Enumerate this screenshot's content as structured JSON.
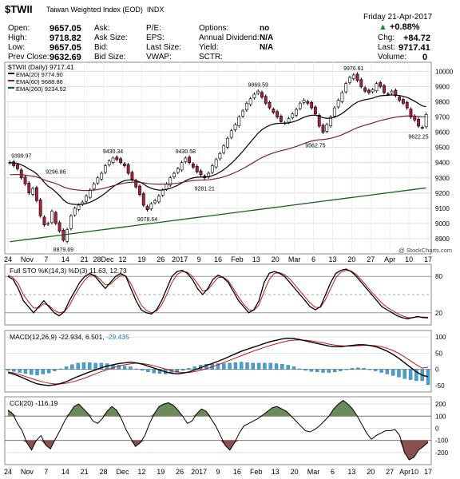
{
  "header": {
    "symbol": "$TWII",
    "name": "Taiwan Weighted Index (EOD)",
    "exchange": "INDX",
    "date": "Friday  21-Apr-2017",
    "watermark": "@ StockCharts.com",
    "open_label": "Open:",
    "open": "9657.05",
    "high_label": "High:",
    "high": "9718.82",
    "low_label": "Low:",
    "low": "9657.05",
    "prev_label": "Prev Close:",
    "prev": "9632.69",
    "ask_label": "Ask:",
    "asksize_label": "Ask Size:",
    "bid_label": "Bid:",
    "bidsize_label": "Bid Size:",
    "pe_label": "P/E:",
    "eps_label": "EPS:",
    "lastsize_label": "Last Size:",
    "vwap_label": "VWAP:",
    "options_label": "Options:",
    "options": "no",
    "div_label": "Annual Dividend:",
    "div": "N/A",
    "yield_label": "Yield:",
    "yield": "N/A",
    "sctr_label": "SCTR:",
    "pct_change": "+0.88%",
    "chg_label": "Chg:",
    "chg": "+84.72",
    "last_label": "Last:",
    "last": "9717.41",
    "volume_label": "Volume:",
    "volume": "0"
  },
  "legend": {
    "main": "$TWII (Daily) 9717.41",
    "ema20": "EMA(20) 9774.90",
    "ema60": "EMA(60) 9688.86",
    "ema260": "EMA(260) 9234.52",
    "sto": "Full STO %K(14,3) %D(3) 11.63, 12.73",
    "macd_black": "MACD(12,26,9)",
    "macd_red": "-22.934, 6.501,",
    "macd_blue": "-29.435",
    "cci": "CCI(20) -116.19"
  },
  "colors": {
    "up": "#ffffff",
    "down": "#b0203a",
    "ema20": "#000000",
    "ema60": "#7a1f3a",
    "ema260": "#1a5e1a",
    "sto_d": "#c01818",
    "hist": "#4aa0d0",
    "cci_fill": "#6b8a5a",
    "cci_neg": "#8a5050"
  },
  "chart_data": {
    "type": "candlestick",
    "title": "$TWII Taiwan Weighted Index (EOD) INDX",
    "price_ylim": [
      8800,
      10060
    ],
    "price_ticks": [
      "10000",
      "9900",
      "9800",
      "9700",
      "9600",
      "9500",
      "9400",
      "9300",
      "9200",
      "9100",
      "9000",
      "8900"
    ],
    "x_labels": [
      "24",
      "Nov",
      "7",
      "14",
      "21",
      "28Dec",
      "12",
      "19",
      "26",
      "2017",
      "9",
      "16",
      "Feb",
      "13",
      "20",
      "Mar",
      "6",
      "13",
      "20",
      "27",
      "Apr",
      "10",
      "17"
    ],
    "bottom_x_labels": [
      "24",
      "Nov",
      "7",
      "14",
      "21",
      "28",
      "Dec",
      "12",
      "19",
      "26",
      "2017",
      "9",
      "16",
      "Feb",
      "13",
      "20",
      "Mar",
      "6",
      "13",
      "20",
      "27",
      "Apr10",
      "17"
    ],
    "annotations": [
      "9399.97",
      "9296.86",
      "8879.69",
      "9430.34",
      "9078.64",
      "9430.58",
      "9281.21",
      "9869.59",
      "9562.75",
      "9976.61",
      "9622.25"
    ],
    "closes": [
      9400,
      9380,
      9360,
      9300,
      9260,
      9200,
      9230,
      9150,
      9050,
      8990,
      9000,
      9080,
      9000,
      8950,
      8890,
      8960,
      9050,
      9100,
      9120,
      9140,
      9180,
      9220,
      9260,
      9300,
      9330,
      9380,
      9410,
      9430,
      9420,
      9400,
      9380,
      9330,
      9290,
      9240,
      9190,
      9120,
      9090,
      9130,
      9150,
      9180,
      9220,
      9260,
      9300,
      9330,
      9360,
      9400,
      9430,
      9400,
      9370,
      9340,
      9320,
      9300,
      9330,
      9380,
      9420,
      9460,
      9510,
      9560,
      9610,
      9650,
      9700,
      9740,
      9790,
      9820,
      9850,
      9870,
      9830,
      9790,
      9760,
      9730,
      9700,
      9670,
      9660,
      9690,
      9720,
      9750,
      9790,
      9810,
      9790,
      9760,
      9720,
      9640,
      9600,
      9650,
      9700,
      9760,
      9810,
      9860,
      9920,
      9960,
      9976,
      9940,
      9900,
      9870,
      9860,
      9880,
      9920,
      9900,
      9860,
      9850,
      9870,
      9840,
      9810,
      9790,
      9760,
      9700,
      9680,
      9640,
      9630,
      9717
    ],
    "sto_k": [
      80,
      75,
      60,
      40,
      30,
      20,
      30,
      40,
      30,
      20,
      15,
      22,
      40,
      55,
      70,
      80,
      85,
      80,
      70,
      60,
      70,
      80,
      85,
      80,
      60,
      40,
      25,
      20,
      18,
      25,
      40,
      60,
      80,
      88,
      90,
      85,
      75,
      60,
      50,
      60,
      75,
      82,
      78,
      70,
      55,
      40,
      30,
      20,
      25,
      40,
      70,
      85,
      88,
      85,
      80,
      70,
      60,
      50,
      40,
      30,
      25,
      30,
      50,
      70,
      85,
      90,
      92,
      88,
      80,
      70,
      60,
      50,
      40,
      30,
      25,
      20,
      15,
      12,
      10,
      12,
      14,
      12,
      11.63
    ],
    "sto_d": [
      82,
      78,
      68,
      50,
      38,
      28,
      28,
      35,
      32,
      24,
      20,
      22,
      32,
      48,
      62,
      74,
      82,
      82,
      75,
      66,
      67,
      75,
      82,
      81,
      68,
      50,
      33,
      24,
      20,
      23,
      33,
      50,
      70,
      83,
      88,
      87,
      80,
      68,
      56,
      58,
      68,
      78,
      79,
      73,
      60,
      46,
      34,
      25,
      24,
      33,
      55,
      75,
      85,
      86,
      83,
      76,
      66,
      56,
      46,
      36,
      29,
      29,
      42,
      60,
      78,
      87,
      90,
      89,
      83,
      74,
      64,
      54,
      45,
      36,
      29,
      24,
      19,
      15,
      12,
      12,
      13,
      13,
      12.73
    ],
    "macd": [
      -10,
      -15,
      -22,
      -30,
      -38,
      -45,
      -48,
      -50,
      -48,
      -44,
      -38,
      -30,
      -22,
      -15,
      -8,
      -2,
      5,
      10,
      14,
      18,
      20,
      22,
      20,
      16,
      10,
      4,
      -2,
      -8,
      -12,
      -14,
      -12,
      -8,
      -2,
      5,
      12,
      18,
      25,
      32,
      40,
      48,
      56,
      62,
      68,
      74,
      80,
      86,
      90,
      94,
      96,
      95,
      92,
      88,
      84,
      80,
      76,
      72,
      70,
      70,
      72,
      74,
      76,
      76,
      74,
      70,
      64,
      56,
      46,
      34,
      20,
      6,
      -8,
      -18,
      -22.934
    ],
    "macd_signal": [
      -8,
      -11,
      -16,
      -22,
      -28,
      -34,
      -39,
      -43,
      -45,
      -45,
      -43,
      -39,
      -34,
      -28,
      -21,
      -14,
      -7,
      -1,
      5,
      10,
      14,
      17,
      19,
      18,
      15,
      11,
      6,
      1,
      -4,
      -8,
      -10,
      -10,
      -7,
      -3,
      2,
      8,
      14,
      21,
      28,
      35,
      42,
      49,
      56,
      62,
      68,
      74,
      79,
      84,
      88,
      90,
      91,
      90,
      88,
      85,
      82,
      78,
      75,
      73,
      72,
      72,
      73,
      74,
      74,
      73,
      70,
      65,
      58,
      49,
      38,
      26,
      14,
      4,
      6.501
    ],
    "cci_ylim": [
      -300,
      260
    ],
    "cci": [
      150,
      120,
      40,
      -20,
      -120,
      -180,
      -100,
      -60,
      -140,
      -170,
      -90,
      -20,
      60,
      120,
      180,
      200,
      160,
      120,
      60,
      40,
      80,
      140,
      180,
      150,
      80,
      -10,
      -80,
      -150,
      -120,
      -60,
      40,
      120,
      180,
      200,
      210,
      190,
      150,
      100,
      40,
      60,
      120,
      160,
      140,
      80,
      20,
      -60,
      -140,
      -180,
      -120,
      -40,
      20,
      40,
      60,
      80,
      110,
      140,
      170,
      180,
      160,
      140,
      100,
      60,
      20,
      -20,
      -30,
      -10,
      20,
      60,
      100,
      160,
      200,
      230,
      200,
      160,
      100,
      30,
      -40,
      -90,
      -60,
      -40,
      -20,
      -20,
      -10,
      -60,
      -200,
      -260,
      -240,
      -180,
      -150,
      -116.19
    ]
  }
}
